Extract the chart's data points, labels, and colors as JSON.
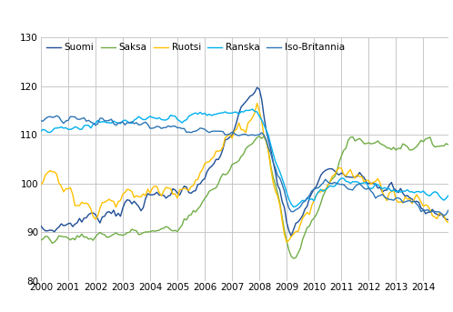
{
  "title": "",
  "xlim": [
    2000.0,
    2014.92
  ],
  "ylim": [
    80,
    130
  ],
  "yticks": [
    80,
    90,
    100,
    110,
    120,
    130
  ],
  "xticks": [
    2000,
    2001,
    2002,
    2003,
    2004,
    2005,
    2006,
    2007,
    2008,
    2009,
    2010,
    2011,
    2012,
    2013,
    2014
  ],
  "legend_labels": [
    "Suomi",
    "Saksa",
    "Ruotsi",
    "Ranska",
    "Iso-Britannia"
  ],
  "colors": {
    "Suomi": "#1F4E96",
    "Saksa": "#70AD47",
    "Ruotsi": "#FFC000",
    "Ranska": "#00B0F0",
    "Iso-Britannia": "#2E75B6"
  },
  "linewidth": 1.0,
  "grid_color": "#BFBFBF",
  "background_color": "#FFFFFF"
}
